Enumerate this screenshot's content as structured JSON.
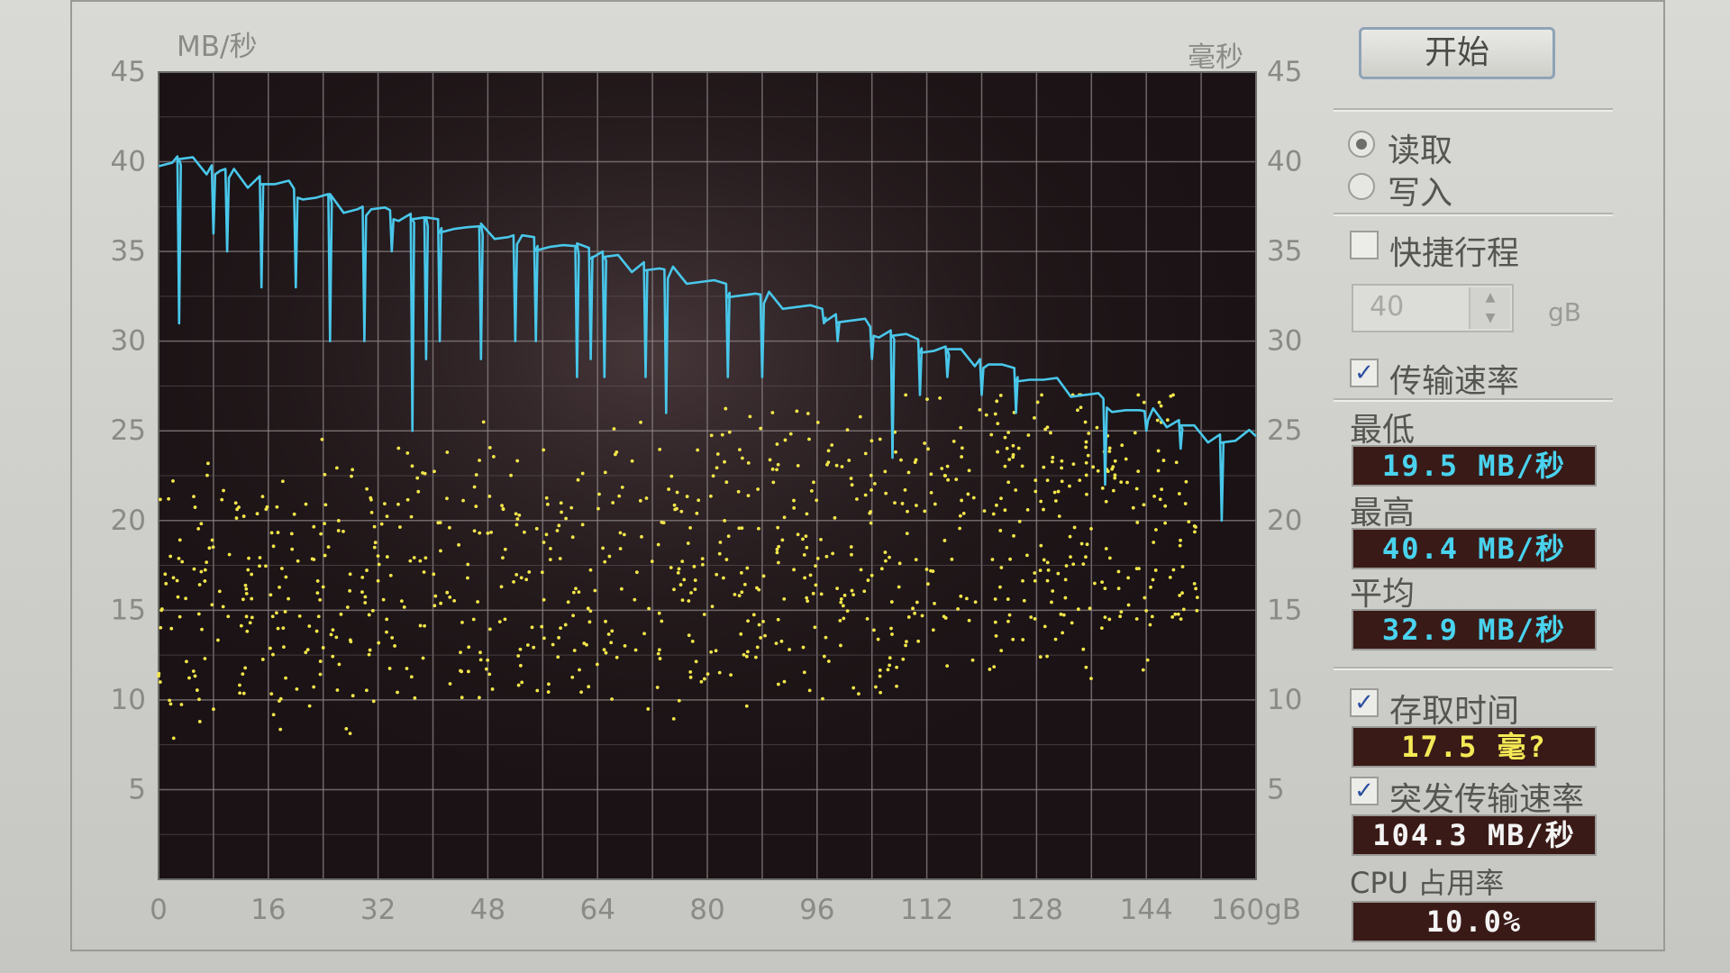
{
  "app": {
    "start_button": "开始",
    "read_label": "读取",
    "write_label": "写入",
    "mode_selected": "read",
    "short_stroke_label": "快捷行程",
    "short_stroke_checked": false,
    "short_stroke_value": "40",
    "short_stroke_unit": "gB",
    "transfer_rate_label": "传输速率",
    "transfer_rate_checked": true,
    "min_label": "最低",
    "min_value": "19.5 MB/秒",
    "max_label": "最高",
    "max_value": "40.4 MB/秒",
    "avg_label": "平均",
    "avg_value": "32.9 MB/秒",
    "access_time_label": "存取时间",
    "access_time_checked": true,
    "access_time_value": "17.5 毫?",
    "burst_label": "突发传输速率",
    "burst_checked": true,
    "burst_value": "104.3 MB/秒",
    "cpu_label": "CPU 占用率",
    "cpu_value": "10.0%",
    "check_mark": "✓"
  },
  "chart_data": {
    "type": "line",
    "left_axis_unit": "MB/秒",
    "right_axis_unit": "毫秒",
    "y_ticks": [
      "45",
      "40",
      "35",
      "30",
      "25",
      "20",
      "15",
      "10",
      "5"
    ],
    "x_ticks": [
      "0",
      "16",
      "32",
      "48",
      "64",
      "80",
      "96",
      "112",
      "128",
      "144",
      "160gB"
    ],
    "xlim": [
      0,
      160
    ],
    "ylim": [
      0,
      45
    ],
    "grid": true,
    "colors": {
      "transfer_rate": "#49c7ea",
      "access_time": "#f2e64a",
      "plot_bg": "#1a1214"
    },
    "series": [
      {
        "name": "传输速率",
        "kind": "line",
        "x": [
          0,
          2,
          3,
          5,
          7,
          9,
          11,
          13,
          15,
          17,
          19,
          21,
          23,
          25,
          27,
          29,
          31,
          33,
          35,
          37,
          39,
          41,
          43,
          45,
          47,
          49,
          51,
          53,
          55,
          57,
          59,
          61,
          63,
          65,
          67,
          69,
          71,
          73,
          75,
          77,
          79,
          81,
          83,
          85,
          87,
          89,
          91,
          93,
          95,
          97,
          99,
          101,
          103,
          105,
          107,
          109,
          111,
          113,
          115,
          117,
          119,
          121,
          123,
          125,
          127,
          129,
          131,
          133,
          135,
          137,
          139,
          141,
          143,
          145,
          147,
          149,
          151,
          153,
          155,
          157,
          159,
          160
        ],
        "y": [
          40.2,
          40.1,
          40.0,
          39.8,
          39.6,
          39.5,
          39.3,
          39.0,
          38.9,
          38.6,
          38.5,
          38.2,
          38.0,
          37.9,
          37.6,
          37.5,
          37.2,
          37.0,
          37.0,
          36.8,
          36.6,
          36.5,
          36.4,
          36.2,
          36.1,
          36.0,
          35.8,
          35.6,
          35.5,
          35.4,
          35.2,
          35.0,
          34.9,
          34.7,
          34.5,
          34.3,
          34.1,
          33.9,
          33.7,
          33.5,
          33.3,
          33.1,
          32.9,
          32.7,
          32.5,
          32.3,
          32.1,
          31.9,
          31.7,
          31.5,
          31.2,
          31.0,
          30.8,
          30.5,
          30.3,
          30.1,
          29.8,
          29.6,
          29.4,
          29.1,
          28.9,
          28.7,
          28.4,
          28.2,
          28.0,
          27.7,
          27.5,
          27.2,
          27.0,
          26.8,
          26.5,
          26.3,
          26.0,
          25.8,
          25.5,
          25.3,
          25.0,
          24.8,
          24.5,
          24.3,
          24.6,
          25.0
        ],
        "dips": [
          [
            3,
            31
          ],
          [
            8,
            36
          ],
          [
            10,
            35
          ],
          [
            15,
            33
          ],
          [
            20,
            33
          ],
          [
            25,
            30
          ],
          [
            30,
            30
          ],
          [
            34,
            35
          ],
          [
            37,
            25
          ],
          [
            39,
            29
          ],
          [
            41,
            30
          ],
          [
            47,
            29
          ],
          [
            52,
            30
          ],
          [
            55,
            30
          ],
          [
            61,
            28
          ],
          [
            63,
            29
          ],
          [
            65,
            28
          ],
          [
            71,
            28
          ],
          [
            74,
            26
          ],
          [
            83,
            28
          ],
          [
            88,
            28
          ],
          [
            97,
            31
          ],
          [
            99,
            30
          ],
          [
            104,
            29
          ],
          [
            107,
            23.5
          ],
          [
            111,
            27
          ],
          [
            115,
            28
          ],
          [
            120,
            27
          ],
          [
            125,
            26
          ],
          [
            138,
            22
          ],
          [
            144,
            25
          ],
          [
            149,
            24
          ],
          [
            155,
            20
          ]
        ]
      },
      {
        "name": "存取时间",
        "kind": "scatter",
        "x_range": [
          0,
          152
        ],
        "y_range": [
          6,
          27
        ]
      }
    ]
  }
}
